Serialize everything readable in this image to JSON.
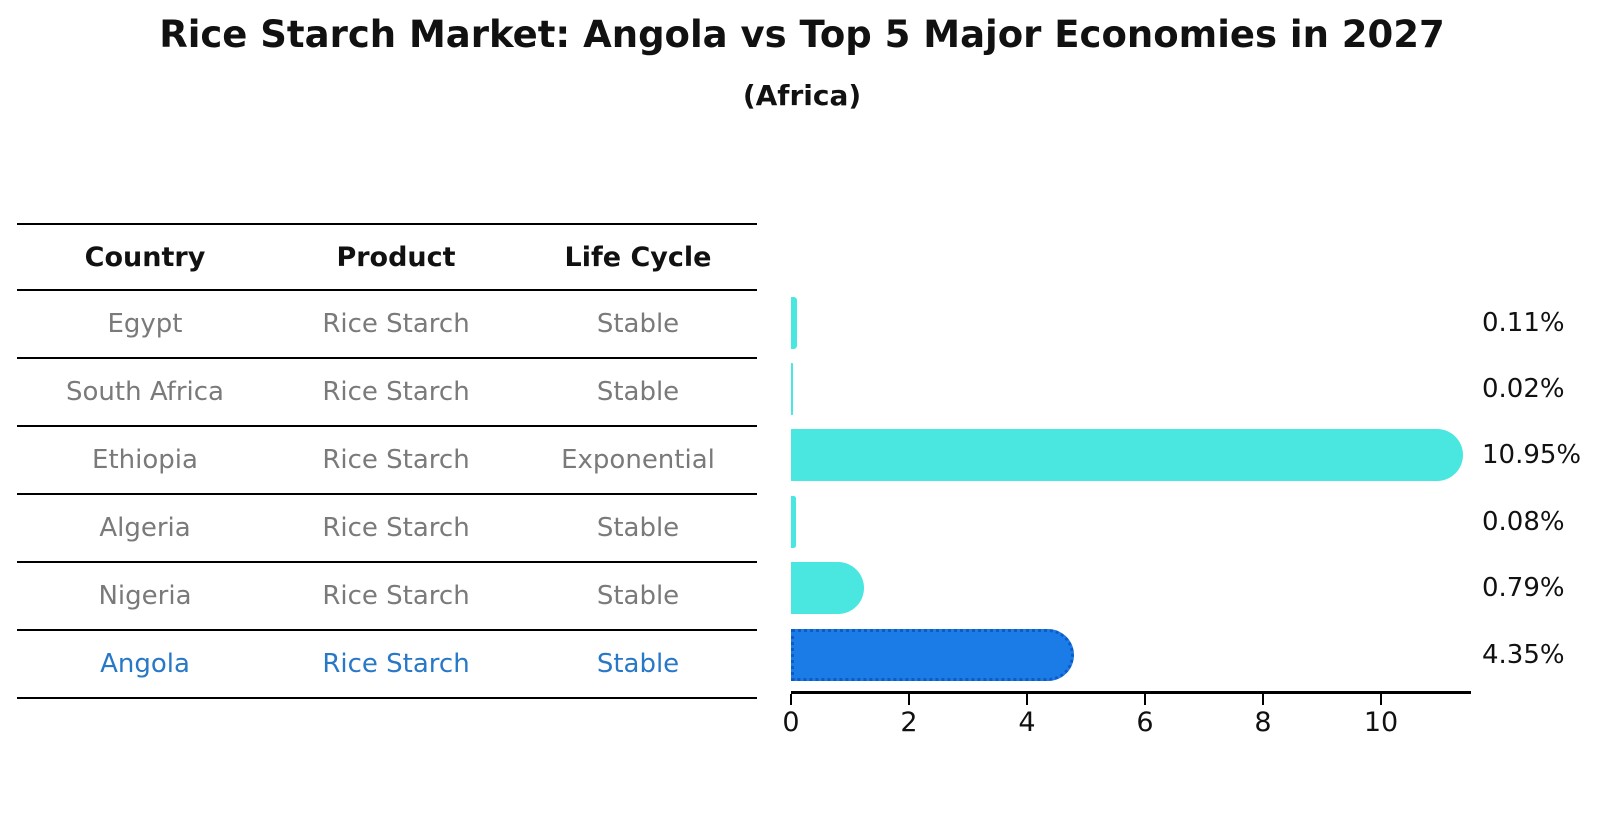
{
  "title": "Rice Starch Market: Angola vs Top 5 Major Economies in 2027",
  "subtitle": "(Africa)",
  "table": {
    "headers": [
      "Country",
      "Product",
      "Life Cycle"
    ],
    "rows": [
      {
        "country": "Egypt",
        "product": "Rice Starch",
        "life_cycle": "Stable",
        "highlight": false
      },
      {
        "country": "South Africa",
        "product": "Rice Starch",
        "life_cycle": "Stable",
        "highlight": false
      },
      {
        "country": "Ethiopia",
        "product": "Rice Starch",
        "life_cycle": "Exponential",
        "highlight": false
      },
      {
        "country": "Algeria",
        "product": "Rice Starch",
        "life_cycle": "Stable",
        "highlight": false
      },
      {
        "country": "Nigeria",
        "product": "Rice Starch",
        "life_cycle": "Stable",
        "highlight": false
      },
      {
        "country": "Angola",
        "product": "Rice Starch",
        "life_cycle": "Stable",
        "highlight": true
      }
    ]
  },
  "chart_data": {
    "type": "bar",
    "orientation": "horizontal",
    "title": "Rice Starch Market: Angola vs Top 5 Major Economies in 2027",
    "subtitle": "(Africa)",
    "categories": [
      "Egypt",
      "South Africa",
      "Ethiopia",
      "Algeria",
      "Nigeria",
      "Angola"
    ],
    "values": [
      0.11,
      0.02,
      10.95,
      0.08,
      0.79,
      4.35
    ],
    "data_labels": [
      "0.11%",
      "0.02%",
      "10.95%",
      "0.08%",
      "0.79%",
      "4.35%"
    ],
    "highlight_index": 5,
    "xlim": [
      0,
      11.5
    ],
    "x_ticks": [
      0,
      2,
      4,
      6,
      8,
      10
    ],
    "grid": false,
    "legend": "none",
    "colors": {
      "bar_default": "#4AE6E0",
      "bar_highlight": "#1B7CE8",
      "bar_highlight_edge": "#0D5BC4",
      "highlight_text": "#2878C8",
      "row_text": "#7a7a7a",
      "heading_text": "#111111"
    }
  }
}
